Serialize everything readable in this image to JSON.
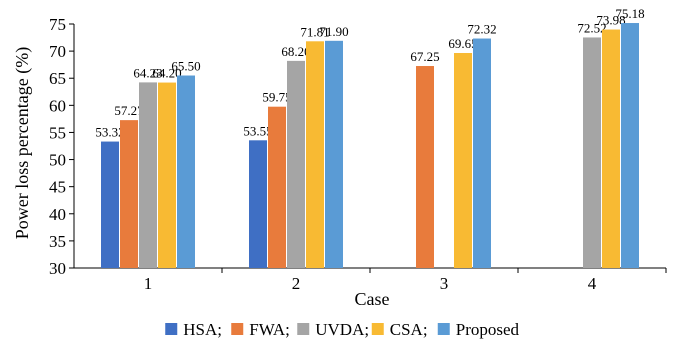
{
  "chart_data": {
    "type": "bar",
    "title": "",
    "xlabel": "Case",
    "ylabel": "Power loss percentage (%)",
    "ylim": [
      30,
      75
    ],
    "yticks": [
      30,
      35,
      40,
      45,
      50,
      55,
      60,
      65,
      70,
      75
    ],
    "categories": [
      "1",
      "2",
      "3",
      "4"
    ],
    "grid": false,
    "legend_position": "bottom",
    "legend_separator": ";",
    "series": [
      {
        "name": "HSA",
        "color": "#3F6FC4",
        "values": [
          53.32,
          53.55,
          null,
          null
        ],
        "labels": [
          "53.32",
          "53.55",
          null,
          null
        ]
      },
      {
        "name": "FWA",
        "color": "#E87B3C",
        "values": [
          57.27,
          59.75,
          67.25,
          null
        ],
        "labels": [
          "57.27",
          "59.75",
          "67.25",
          null
        ]
      },
      {
        "name": "UVDA",
        "color": "#A5A5A5",
        "values": [
          64.23,
          68.2,
          null,
          72.52
        ],
        "labels": [
          "64.23",
          "68.20",
          null,
          "72.52"
        ]
      },
      {
        "name": "CSA",
        "color": "#F8BA33",
        "values": [
          64.2,
          71.81,
          69.65,
          73.98
        ],
        "labels": [
          "64.20",
          "71.81",
          "69.65",
          "73.98"
        ]
      },
      {
        "name": "Proposed",
        "color": "#5A9BD5",
        "values": [
          65.5,
          71.9,
          72.32,
          75.18
        ],
        "labels": [
          "65.50",
          "71.90",
          "72.32",
          "75.18"
        ]
      }
    ]
  }
}
